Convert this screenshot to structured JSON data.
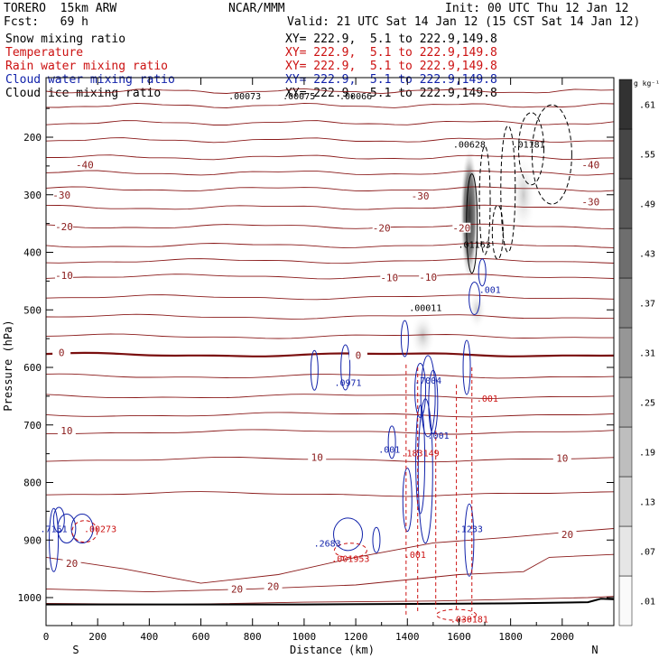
{
  "header": {
    "model": "TORERO  15km ARW",
    "org": "NCAR/MMM",
    "init": "Init: 00 UTC Thu 12 Jan 12",
    "fcst": "Fcst:   69 h",
    "valid": "Valid: 21 UTC Sat 14 Jan 12 (15 CST Sat 14 Jan 12)"
  },
  "fields": [
    {
      "label": "Snow mixing ratio",
      "xy": "XY= 222.9,  5.1 to 222.9,149.8",
      "color": "#000000"
    },
    {
      "label": "Temperature",
      "xy": "XY= 222.9,  5.1 to 222.9,149.8",
      "color": "#cc1111"
    },
    {
      "label": "Rain water mixing ratio",
      "xy": "XY= 222.9,  5.1 to 222.9,149.8",
      "color": "#cc1111"
    },
    {
      "label": "Cloud water mixing ratio",
      "xy": "XY= 222.9,  5.1 to 222.9,149.8",
      "color": "#1122aa"
    },
    {
      "label": "Cloud ice mixing ratio",
      "xy": "XY= 222.9,  5.1 to 222.9,149.8",
      "color": "#000000"
    }
  ],
  "chart_data": {
    "type": "cross-section",
    "xlabel": "Distance (km)",
    "ylabel": "Pressure (hPa)",
    "xlim": [
      0,
      2200
    ],
    "ylim": [
      1050,
      100
    ],
    "x_ticks": [
      0,
      200,
      400,
      600,
      800,
      1000,
      1200,
      1400,
      1600,
      1800,
      2000
    ],
    "y_ticks": [
      200,
      300,
      400,
      500,
      600,
      700,
      800,
      900,
      1000
    ],
    "left_end_label": "S",
    "right_end_label": "N",
    "colorbar": {
      "unit": "g kg⁻¹",
      "levels": [
        ".01",
        ".07",
        ".13",
        ".19",
        ".25",
        ".31",
        ".37",
        ".43",
        ".49",
        ".55",
        ".61"
      ]
    },
    "temperature_isotherm_labels": [
      {
        "text": "-40",
        "x": 150,
        "p": 248
      },
      {
        "text": "-40",
        "x": 2110,
        "p": 248
      },
      {
        "text": "-30",
        "x": 60,
        "p": 300
      },
      {
        "text": "-30",
        "x": 1450,
        "p": 302
      },
      {
        "text": "-30",
        "x": 2110,
        "p": 312
      },
      {
        "text": "-20",
        "x": 70,
        "p": 355
      },
      {
        "text": "-20",
        "x": 1300,
        "p": 358
      },
      {
        "text": "-20",
        "x": 1610,
        "p": 358
      },
      {
        "text": "-10",
        "x": 70,
        "p": 440
      },
      {
        "text": "-10",
        "x": 1330,
        "p": 444
      },
      {
        "text": "-10",
        "x": 1480,
        "p": 443
      },
      {
        "text": "0",
        "x": 60,
        "p": 574
      },
      {
        "text": "0",
        "x": 1210,
        "p": 579
      },
      {
        "text": "10",
        "x": 80,
        "p": 710
      },
      {
        "text": "10",
        "x": 1050,
        "p": 756
      },
      {
        "text": "10",
        "x": 2000,
        "p": 758
      },
      {
        "text": "20",
        "x": 100,
        "p": 940
      },
      {
        "text": "20",
        "x": 740,
        "p": 985
      },
      {
        "text": "20",
        "x": 880,
        "p": 980
      },
      {
        "text": "20",
        "x": 2020,
        "p": 890
      }
    ],
    "maxima_labels": [
      {
        "text": ".00073",
        "x": 770,
        "p": 128,
        "color": "black"
      },
      {
        "text": ".00075",
        "x": 980,
        "p": 128,
        "color": "black"
      },
      {
        "text": ".00066",
        "x": 1200,
        "p": 128,
        "color": "black"
      },
      {
        "text": ".00628",
        "x": 1640,
        "p": 212,
        "color": "black"
      },
      {
        "text": ".01181",
        "x": 1870,
        "p": 212,
        "color": "black"
      },
      {
        "text": ".01163",
        "x": 1660,
        "p": 386,
        "color": "black"
      },
      {
        "text": ".00011",
        "x": 1470,
        "p": 496,
        "color": "black"
      },
      {
        "text": ".001",
        "x": 1720,
        "p": 464,
        "color": "blue"
      },
      {
        "text": ".0971",
        "x": 1170,
        "p": 626,
        "color": "blue"
      },
      {
        "text": ".7004",
        "x": 1480,
        "p": 622,
        "color": "blue"
      },
      {
        "text": ".001",
        "x": 1710,
        "p": 653,
        "color": "red"
      },
      {
        "text": ".001",
        "x": 1520,
        "p": 718,
        "color": "blue"
      },
      {
        "text": ".001",
        "x": 1330,
        "p": 742,
        "color": "blue"
      },
      {
        "text": ".183149",
        "x": 1450,
        "p": 748,
        "color": "red"
      },
      {
        "text": ".1233",
        "x": 1640,
        "p": 880,
        "color": "blue"
      },
      {
        "text": ".2683",
        "x": 1090,
        "p": 905,
        "color": "blue"
      },
      {
        "text": ".001953",
        "x": 1180,
        "p": 932,
        "color": "red"
      },
      {
        "text": ".001",
        "x": 1430,
        "p": 925,
        "color": "red"
      },
      {
        "text": ".7151",
        "x": 30,
        "p": 880,
        "color": "blue"
      },
      {
        "text": ".00273",
        "x": 210,
        "p": 880,
        "color": "red"
      },
      {
        "text": ".030181",
        "x": 1640,
        "p": 1037,
        "color": "red"
      }
    ]
  }
}
